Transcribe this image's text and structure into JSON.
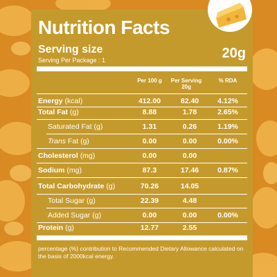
{
  "title": "Nutrition Facts",
  "serving": {
    "label": "Serving size",
    "per_package": "Serving Per Package : 1",
    "amount": "20g"
  },
  "table": {
    "columns": [
      "Per 100 g",
      "Per Serving 20g",
      "% RDA"
    ],
    "rows": [
      {
        "name": "Energy",
        "unit": "(kcal)",
        "per_100g": "412.00",
        "per_serving": "82.40",
        "rda": "4.12%"
      },
      {
        "name": "Total Fat",
        "unit": "(g)",
        "per_100g": "8.88",
        "per_serving": "1.78",
        "rda": "2.65%"
      },
      {
        "name": "Saturated Fat",
        "unit": "(g)",
        "per_100g": "1.31",
        "per_serving": "0.26",
        "rda": "1.19%"
      },
      {
        "name": "Trans",
        "unit": "Fat (g)",
        "per_100g": "0.00",
        "per_serving": "0.00",
        "rda": "0.00%"
      },
      {
        "name": "Cholesterol",
        "unit": "(mg)",
        "per_100g": "0.00",
        "per_serving": "0.00"
      },
      {
        "name": "Sodium",
        "unit": "(mg)",
        "per_100g": "87.3",
        "per_serving": "17.46",
        "rda": "0.87%"
      },
      {
        "name": "Total Carbohydrate",
        "unit": "(g)",
        "per_100g": "70.26",
        "per_serving": "14.05"
      },
      {
        "name": "Total Sugar",
        "unit": "(g)",
        "per_100g": "22.39",
        "per_serving": "4.48"
      },
      {
        "name": "Added Sugar",
        "unit": "(g)",
        "per_100g": "0.00",
        "per_serving": "0.00",
        "rda": "0.00%"
      },
      {
        "name": "Protein",
        "unit": "(g)",
        "per_100g": "12.77",
        "per_serving": "2.55"
      }
    ]
  },
  "footnote": "percentage (%) contribution to Recommended Dietary Allowance calculated on the basis of 2000kcal energy."
}
